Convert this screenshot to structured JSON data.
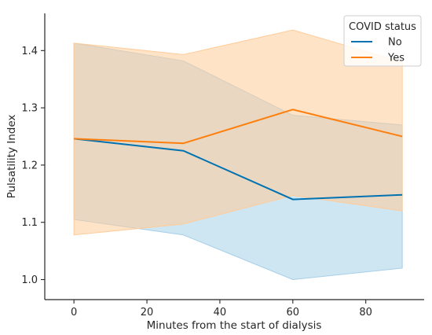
{
  "chart_data": {
    "type": "line",
    "xlabel": "Minutes from the start of dialysis",
    "ylabel": "Pulsatility Index",
    "xlim": [
      -8,
      96
    ],
    "ylim": [
      0.965,
      1.465
    ],
    "xticks": [
      0,
      20,
      40,
      60,
      80
    ],
    "yticks": [
      1.0,
      1.1,
      1.2,
      1.3,
      1.4
    ],
    "ytick_labels": [
      "1.0",
      "1.1",
      "1.2",
      "1.3",
      "1.4"
    ],
    "grid": false,
    "legend": {
      "title": "COVID status",
      "position": "top-right"
    },
    "x": [
      0,
      30,
      60,
      90
    ],
    "series": [
      {
        "name": "No",
        "color": "#0072b2",
        "band_color": "#a6cfe8",
        "values": [
          1.246,
          1.225,
          1.14,
          1.148
        ],
        "ci_low": [
          1.105,
          1.078,
          1.0,
          1.02
        ],
        "ci_high": [
          1.413,
          1.382,
          1.287,
          1.27
        ]
      },
      {
        "name": "Yes",
        "color": "#ff7f0e",
        "band_color": "#ffcc99",
        "values": [
          1.246,
          1.238,
          1.297,
          1.25
        ],
        "ci_low": [
          1.078,
          1.097,
          1.147,
          1.12
        ],
        "ci_high": [
          1.413,
          1.393,
          1.436,
          1.38
        ]
      }
    ]
  }
}
